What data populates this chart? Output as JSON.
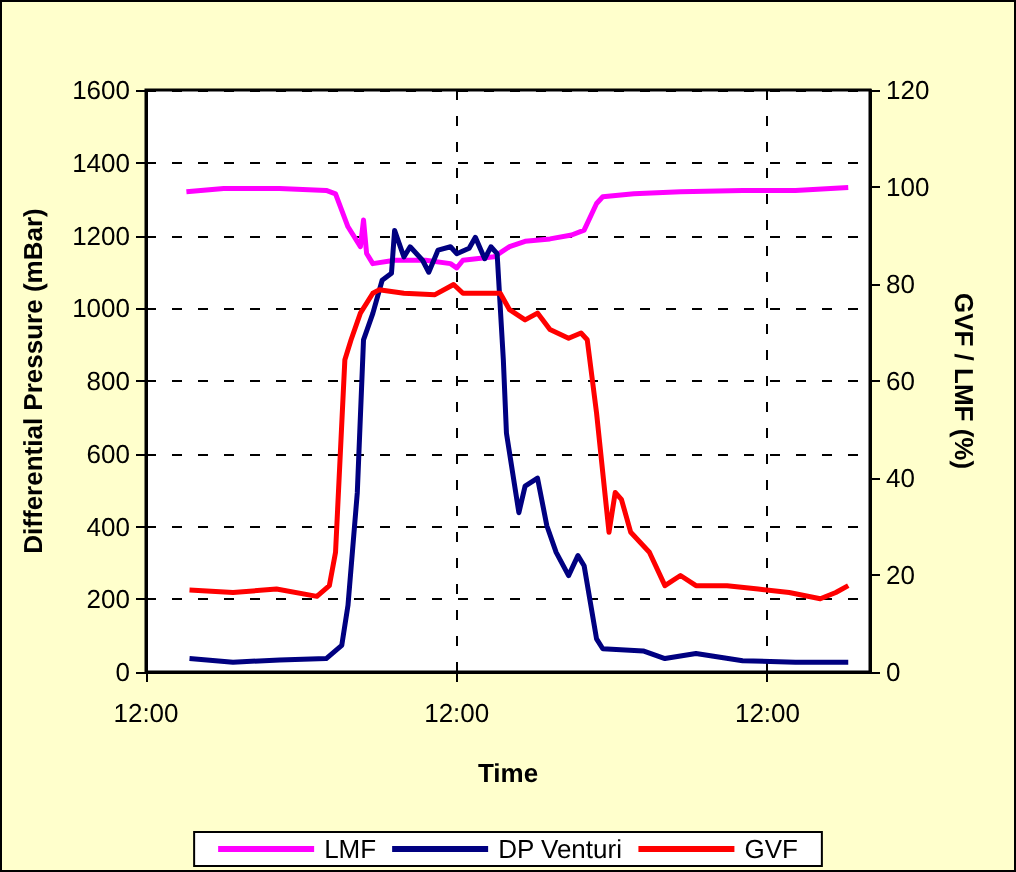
{
  "chart_data": {
    "type": "line",
    "xlabel": "Time",
    "ylabel": "Differential Pressure (mBar)",
    "y2label": "GVF / LMF (%)",
    "xlim": [
      12,
      12.00932
    ],
    "xticks": [
      {
        "value": 12,
        "label": "12:00"
      },
      {
        "value": 12.004,
        "label": "12:00"
      },
      {
        "value": 12.008,
        "label": "12:00"
      }
    ],
    "ylim": [
      0,
      1600
    ],
    "yticks": [
      0,
      200,
      400,
      600,
      800,
      1000,
      1200,
      1400,
      1600
    ],
    "y2lim": [
      0,
      120
    ],
    "y2ticks": [
      0,
      20,
      40,
      60,
      80,
      100,
      120
    ],
    "grid": true,
    "legend": "bottom",
    "marker": "none",
    "line_style": "solid",
    "series": [
      {
        "name": "LMF",
        "color": "#ff00ff",
        "axis": "y2",
        "x": [
          12.00052,
          12.001,
          12.00172,
          12.00232,
          12.00244,
          12.0026,
          12.00276,
          12.0028,
          12.00284,
          12.00292,
          12.0032,
          12.0036,
          12.00392,
          12.004,
          12.00408,
          12.00448,
          12.00468,
          12.00488,
          12.0052,
          12.00548,
          12.00564,
          12.0058,
          12.00588,
          12.00628,
          12.00688,
          12.00768,
          12.00836,
          12.00904
        ],
        "values": [
          99.0,
          99.7,
          99.7,
          99.3,
          98.6,
          91.8,
          87.7,
          93.2,
          86.3,
          84.2,
          84.9,
          84.9,
          84.2,
          83.3,
          84.9,
          85.6,
          87.7,
          88.8,
          89.3,
          90.1,
          91.1,
          96.6,
          98.0,
          98.6,
          99.0,
          99.3,
          99.3,
          99.9
        ]
      },
      {
        "name": "DP Venturi",
        "color": "#000080",
        "x": [
          12.00056,
          12.00112,
          12.00172,
          12.00232,
          12.00252,
          12.0026,
          12.00272,
          12.0028,
          12.00292,
          12.00304,
          12.00316,
          12.0032,
          12.00332,
          12.0034,
          12.00356,
          12.00364,
          12.00376,
          12.00392,
          12.004,
          12.00416,
          12.00424,
          12.00436,
          12.00444,
          12.00452,
          12.0046,
          12.00464,
          12.0048,
          12.00488,
          12.00504,
          12.00516,
          12.00528,
          12.00544,
          12.00556,
          12.00564,
          12.0058,
          12.00588,
          12.0064,
          12.00668,
          12.00708,
          12.00768,
          12.00836,
          12.00904
        ],
        "values": [
          37,
          27,
          33,
          37,
          73,
          183,
          493,
          913,
          986,
          1077,
          1096,
          1214,
          1141,
          1169,
          1132,
          1099,
          1160,
          1169,
          1150,
          1165,
          1195,
          1136,
          1169,
          1150,
          858,
          657,
          438,
          511,
          533,
          402,
          329,
          265,
          320,
          292,
          91,
          64,
          58,
          37,
          51,
          31,
          27,
          27
        ]
      },
      {
        "name": "GVF",
        "color": "#ff0000",
        "axis": "y2",
        "x": [
          12.00056,
          12.00112,
          12.00168,
          12.0022,
          12.00236,
          12.00244,
          12.00256,
          12.00264,
          12.00276,
          12.00292,
          12.003,
          12.00332,
          12.00372,
          12.00396,
          12.00408,
          12.00456,
          12.00468,
          12.00488,
          12.00504,
          12.0052,
          12.00544,
          12.0056,
          12.00568,
          12.0058,
          12.00596,
          12.00604,
          12.00612,
          12.00624,
          12.00648,
          12.00668,
          12.00688,
          12.00708,
          12.00748,
          12.00788,
          12.00828,
          12.00868,
          12.00888,
          12.00904
        ],
        "values": [
          16.9,
          16.4,
          17.1,
          15.6,
          17.8,
          24.7,
          64.4,
          68.5,
          74.0,
          78.1,
          78.8,
          78.1,
          77.8,
          79.9,
          78.1,
          78.1,
          74.7,
          72.6,
          74.0,
          70.6,
          68.8,
          69.9,
          68.5,
          53.4,
          28.8,
          37.0,
          35.6,
          28.8,
          24.7,
          17.8,
          19.9,
          17.8,
          17.8,
          17.1,
          16.4,
          15.1,
          16.4,
          17.8
        ]
      }
    ]
  }
}
